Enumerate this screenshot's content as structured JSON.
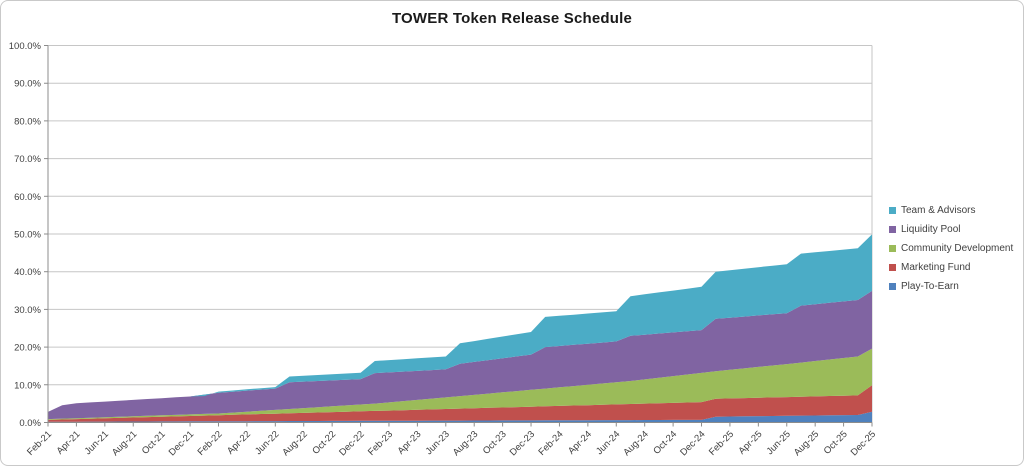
{
  "window": {
    "background": "#FFFFFF",
    "border_color": "#C9C9C9"
  },
  "chart_data": {
    "type": "area",
    "stacked": true,
    "title": "TOWER Token Release Schedule",
    "y_axis": {
      "min": 0,
      "max": 100,
      "tick_step": 10,
      "tick_labels": [
        "0.0%",
        "10.0%",
        "20.0%",
        "30.0%",
        "40.0%",
        "50.0%",
        "60.0%",
        "70.0%",
        "80.0%",
        "90.0%",
        "100.0%"
      ],
      "grid": true
    },
    "x_axis": {
      "tick_labels": [
        "Feb-21",
        "Apr-21",
        "Jun-21",
        "Aug-21",
        "Oct-21",
        "Dec-21",
        "Feb-22",
        "Apr-22",
        "Jun-22",
        "Aug-22",
        "Oct-22",
        "Dec-22",
        "Feb-23",
        "Apr-23",
        "Jun-23",
        "Aug-23",
        "Oct-23",
        "Dec-23",
        "Feb-24",
        "Apr-24",
        "Jun-24",
        "Aug-24",
        "Oct-24",
        "Dec-24",
        "Feb-25",
        "Apr-25",
        "Jun-25",
        "Aug-25",
        "Oct-25",
        "Dec-25"
      ],
      "months_between_ticks": 2,
      "total_months": 59,
      "label_rotation_deg": -45
    },
    "legend": {
      "position": "right"
    },
    "series": [
      {
        "name": "Team & Advisors",
        "color": "#4BACC6",
        "cumulative_stack_top_pct_keypoints": [
          [
            0,
            2.8
          ],
          [
            1,
            4.6
          ],
          [
            2,
            5.1
          ],
          [
            10,
            6.9
          ],
          [
            11,
            7.0
          ],
          [
            12,
            8.2
          ],
          [
            16,
            9.4
          ],
          [
            17,
            12.2
          ],
          [
            22,
            13.2
          ],
          [
            23,
            16.3
          ],
          [
            28,
            17.5
          ],
          [
            29,
            21.0
          ],
          [
            34,
            24.0
          ],
          [
            35,
            28.0
          ],
          [
            40,
            29.5
          ],
          [
            41,
            33.5
          ],
          [
            46,
            36.0
          ],
          [
            47,
            40.0
          ],
          [
            52,
            42.0
          ],
          [
            53,
            44.8
          ],
          [
            57,
            46.2
          ],
          [
            58,
            49.9
          ]
        ]
      },
      {
        "name": "Liquidity Pool",
        "color": "#8064A2",
        "cumulative_stack_top_pct_keypoints": [
          [
            0,
            2.8
          ],
          [
            1,
            4.6
          ],
          [
            2,
            5.1
          ],
          [
            10,
            6.9
          ],
          [
            12,
            7.9
          ],
          [
            16,
            9.0
          ],
          [
            17,
            10.7
          ],
          [
            22,
            11.5
          ],
          [
            23,
            13.1
          ],
          [
            28,
            14.1
          ],
          [
            29,
            15.6
          ],
          [
            34,
            18.0
          ],
          [
            35,
            20.0
          ],
          [
            40,
            21.5
          ],
          [
            41,
            23.0
          ],
          [
            46,
            24.5
          ],
          [
            47,
            27.5
          ],
          [
            52,
            29.0
          ],
          [
            53,
            31.0
          ],
          [
            57,
            32.5
          ],
          [
            58,
            34.9
          ]
        ]
      },
      {
        "name": "Community Development",
        "color": "#9BBB59",
        "cumulative_stack_top_pct_keypoints": [
          [
            0,
            0.9
          ],
          [
            12,
            2.4
          ],
          [
            23,
            5.0
          ],
          [
            35,
            9.0
          ],
          [
            41,
            11.0
          ],
          [
            47,
            13.6
          ],
          [
            52,
            15.5
          ],
          [
            57,
            17.5
          ],
          [
            58,
            19.6
          ]
        ]
      },
      {
        "name": "Marketing Fund",
        "color": "#C0504D",
        "cumulative_stack_top_pct_keypoints": [
          [
            0,
            0.7
          ],
          [
            35,
            4.3
          ],
          [
            46,
            5.4
          ],
          [
            47,
            6.3
          ],
          [
            57,
            7.2
          ],
          [
            58,
            9.9
          ]
        ]
      },
      {
        "name": "Play-To-Earn",
        "color": "#4F81BD",
        "cumulative_stack_top_pct_keypoints": [
          [
            0,
            0.2
          ],
          [
            46,
            0.7
          ],
          [
            47,
            1.55
          ],
          [
            57,
            2.0
          ],
          [
            58,
            2.85
          ]
        ]
      }
    ],
    "stacking_bottom_to_top": [
      "Play-To-Earn",
      "Marketing Fund",
      "Community Development",
      "Liquidity Pool",
      "Team & Advisors"
    ],
    "colors": {
      "grid": "#C6C6C6",
      "axis": "#8C8C8C",
      "plot_border": "#C6C6C6",
      "text": "#404040",
      "title": "#1A1A1A"
    }
  }
}
